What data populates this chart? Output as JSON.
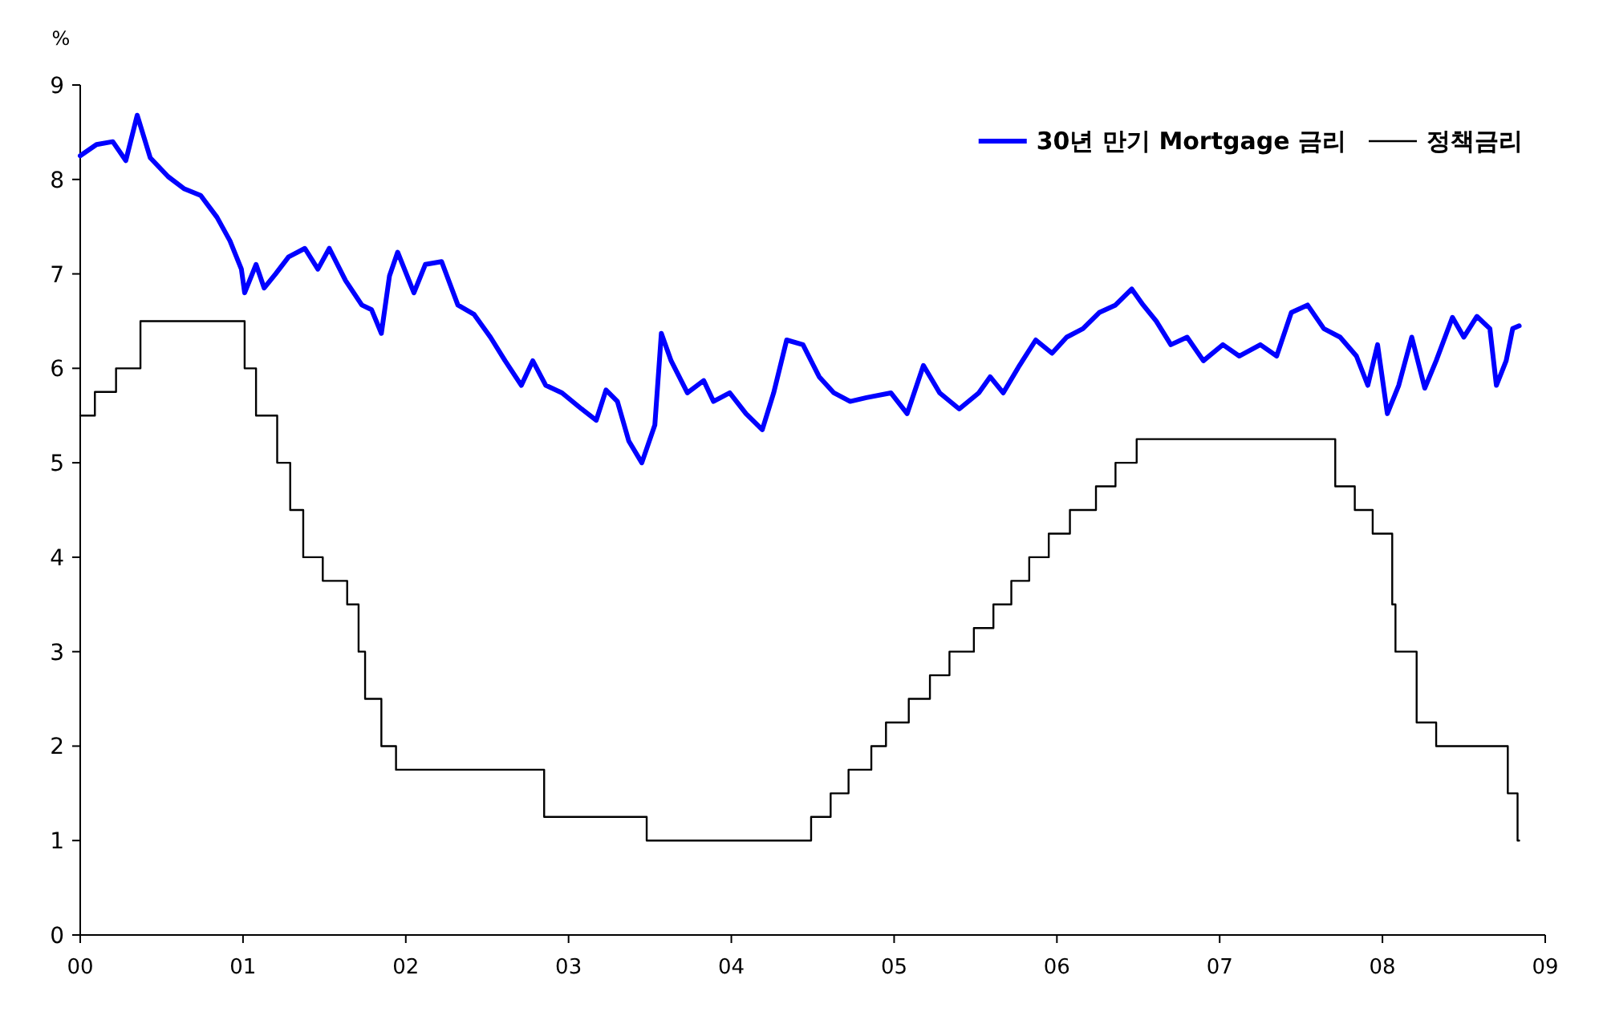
{
  "chart_data": {
    "type": "line",
    "ylabel": "%",
    "xlim": [
      2000,
      2009
    ],
    "ylim": [
      0,
      9
    ],
    "xticks": [
      {
        "value": 2000,
        "label": "00"
      },
      {
        "value": 2001,
        "label": "01"
      },
      {
        "value": 2002,
        "label": "02"
      },
      {
        "value": 2003,
        "label": "03"
      },
      {
        "value": 2004,
        "label": "04"
      },
      {
        "value": 2005,
        "label": "05"
      },
      {
        "value": 2006,
        "label": "06"
      },
      {
        "value": 2007,
        "label": "07"
      },
      {
        "value": 2008,
        "label": "08"
      },
      {
        "value": 2009,
        "label": "09"
      }
    ],
    "yticks": [
      0,
      1,
      2,
      3,
      4,
      5,
      6,
      7,
      8,
      9
    ],
    "grid": false,
    "legend": "top right",
    "series": [
      {
        "name": "30년 만기 Mortgage 금리",
        "color": "#0000ff",
        "x": [
          2000.0,
          2000.1,
          2000.2,
          2000.28,
          2000.35,
          2000.43,
          2000.54,
          2000.64,
          2000.74,
          2000.84,
          2000.92,
          2000.99,
          2001.01,
          2001.08,
          2001.13,
          2001.2,
          2001.28,
          2001.38,
          2001.46,
          2001.53,
          2001.63,
          2001.73,
          2001.79,
          2001.85,
          2001.9,
          2001.95,
          2002.05,
          2002.12,
          2002.22,
          2002.32,
          2002.42,
          2002.52,
          2002.61,
          2002.71,
          2002.78,
          2002.86,
          2002.96,
          2003.08,
          2003.17,
          2003.23,
          2003.3,
          2003.37,
          2003.45,
          2003.53,
          2003.57,
          2003.63,
          2003.73,
          2003.83,
          2003.89,
          2003.99,
          2004.09,
          2004.19,
          2004.26,
          2004.34,
          2004.44,
          2004.54,
          2004.63,
          2004.73,
          2004.83,
          2004.98,
          2005.08,
          2005.18,
          2005.28,
          2005.4,
          2005.52,
          2005.59,
          2005.67,
          2005.77,
          2005.87,
          2005.97,
          2006.06,
          2006.16,
          2006.26,
          2006.36,
          2006.46,
          2006.53,
          2006.61,
          2006.7,
          2006.8,
          2006.9,
          2007.02,
          2007.12,
          2007.25,
          2007.35,
          2007.44,
          2007.54,
          2007.64,
          2007.74,
          2007.84,
          2007.91,
          2007.97,
          2008.03,
          2008.1,
          2008.18,
          2008.26,
          2008.33,
          2008.43,
          2008.5,
          2008.58,
          2008.66,
          2008.7,
          2008.76,
          2008.8,
          2008.84
        ],
        "values": [
          8.25,
          8.37,
          8.4,
          8.2,
          8.68,
          8.23,
          8.03,
          7.9,
          7.83,
          7.6,
          7.35,
          7.05,
          6.8,
          7.1,
          6.85,
          7.0,
          7.18,
          7.27,
          7.05,
          7.27,
          6.93,
          6.67,
          6.62,
          6.37,
          6.98,
          7.23,
          6.8,
          7.1,
          7.13,
          6.67,
          6.57,
          6.33,
          6.08,
          5.82,
          6.08,
          5.82,
          5.74,
          5.57,
          5.45,
          5.77,
          5.65,
          5.23,
          5.0,
          5.4,
          6.37,
          6.08,
          5.74,
          5.87,
          5.65,
          5.74,
          5.52,
          5.35,
          5.74,
          6.3,
          6.25,
          5.91,
          5.74,
          5.65,
          5.69,
          5.74,
          5.52,
          6.03,
          5.74,
          5.57,
          5.74,
          5.91,
          5.74,
          6.03,
          6.3,
          6.16,
          6.33,
          6.42,
          6.59,
          6.67,
          6.84,
          6.67,
          6.5,
          6.25,
          6.33,
          6.08,
          6.25,
          6.13,
          6.25,
          6.13,
          6.59,
          6.67,
          6.42,
          6.33,
          6.13,
          5.82,
          6.25,
          5.52,
          5.82,
          6.33,
          5.79,
          6.08,
          6.54,
          6.33,
          6.55,
          6.42,
          5.82,
          6.08,
          6.42,
          6.45
        ]
      },
      {
        "name": "정책금리",
        "type": "step",
        "color": "#000000",
        "x": [
          2000.0,
          2000.09,
          2000.22,
          2000.37,
          2001.01,
          2001.08,
          2001.21,
          2001.29,
          2001.37,
          2001.49,
          2001.64,
          2001.71,
          2001.75,
          2001.85,
          2001.94,
          2002.85,
          2003.48,
          2004.49,
          2004.61,
          2004.72,
          2004.86,
          2004.95,
          2005.09,
          2005.22,
          2005.34,
          2005.49,
          2005.61,
          2005.72,
          2005.83,
          2005.95,
          2006.08,
          2006.24,
          2006.36,
          2006.49,
          2007.71,
          2007.83,
          2007.94,
          2008.06,
          2008.08,
          2008.21,
          2008.33,
          2008.77,
          2008.83,
          2008.84
        ],
        "values": [
          5.5,
          5.75,
          6.0,
          6.5,
          6.0,
          5.5,
          5.0,
          4.5,
          4.0,
          3.75,
          3.5,
          3.0,
          2.5,
          2.0,
          1.75,
          1.25,
          1.0,
          1.25,
          1.5,
          1.75,
          2.0,
          2.25,
          2.5,
          2.75,
          3.0,
          3.25,
          3.5,
          3.75,
          4.0,
          4.25,
          4.5,
          4.75,
          5.0,
          5.25,
          4.75,
          4.5,
          4.25,
          3.5,
          3.0,
          2.25,
          2.0,
          1.5,
          1.0,
          1.0
        ]
      }
    ]
  }
}
